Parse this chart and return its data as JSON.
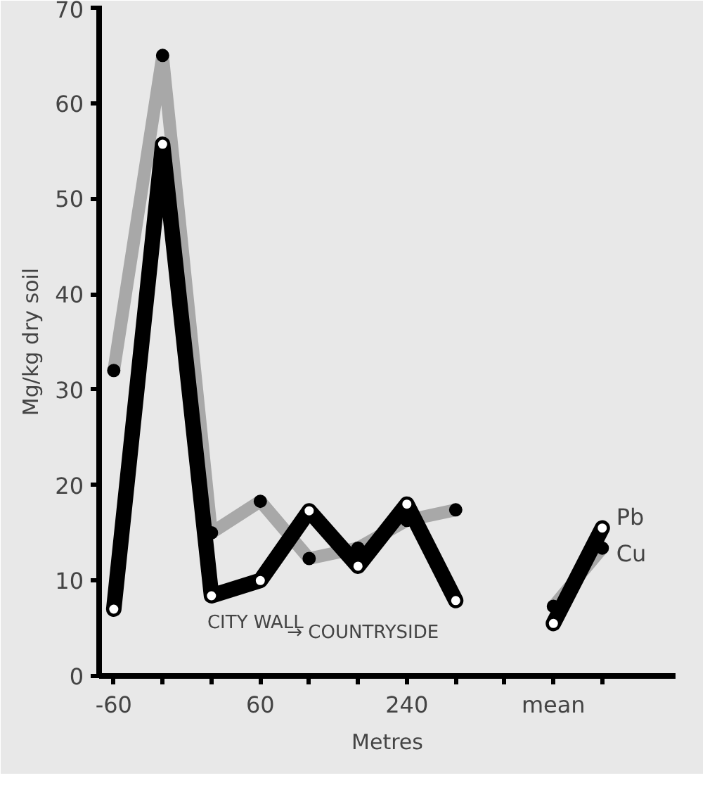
{
  "chart_data": {
    "type": "line",
    "xlabel": "Metres",
    "ylabel": "Mg/kg dry soil",
    "categories": [
      "-60",
      null,
      null,
      "60",
      null,
      null,
      "240",
      null,
      null,
      "mean",
      null
    ],
    "series": [
      {
        "name": "Cu",
        "color": "#a8a8a8",
        "values": [
          32,
          65,
          15,
          18.3,
          12.3,
          13.4,
          16.3,
          17.4,
          null,
          7.3,
          13.4
        ]
      },
      {
        "name": "Pb",
        "color": "#000000",
        "values": [
          7,
          55.7,
          8.4,
          10,
          17.3,
          11.5,
          18,
          7.9,
          null,
          5.5,
          15.5
        ]
      }
    ],
    "ylim": [
      0,
      70
    ],
    "yticks": [
      0,
      10,
      20,
      30,
      40,
      50,
      60,
      70
    ],
    "annotations": [
      "CITY WALL",
      "→ COUNTRYSIDE"
    ],
    "marker": "circle",
    "line_style": "solid"
  }
}
